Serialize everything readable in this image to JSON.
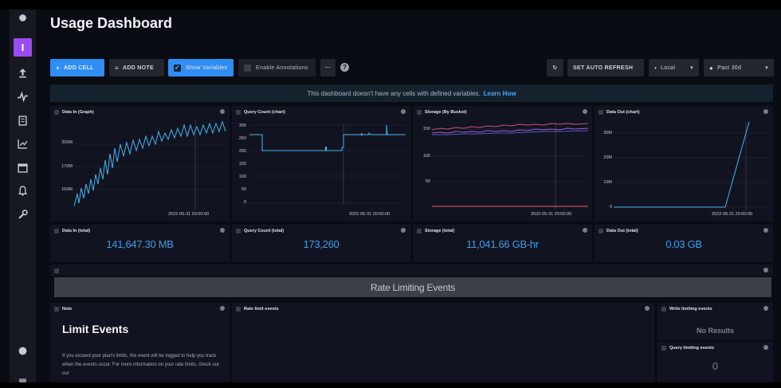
{
  "dashboard": {
    "title": "Usage Dashboard"
  },
  "toolbar": {
    "add_cell": "ADD CELL",
    "add_note": "ADD NOTE",
    "show_variables": "Show Variables",
    "enable_annotations": "Enable Annotations",
    "more": "···",
    "help": "?",
    "auto_refresh": "SET AUTO REFRESH",
    "timezone": "Local",
    "time_range": "Past 30d"
  },
  "banner": {
    "text": "This dashboard doesn't have any cells with defined variables.",
    "link": "Learn How"
  },
  "cells": {
    "data_in_graph": {
      "title": "Data In (Graph)",
      "timestamp": "2022-05-31 20:00:00",
      "y_ticks": [
        "200M",
        "170M",
        "150M"
      ]
    },
    "query_count_chart": {
      "title": "Query Count (chart)",
      "timestamp": "2022-05-31 20:00:00",
      "y_ticks": [
        "300",
        "250",
        "200",
        "150",
        "100",
        "50",
        "0"
      ]
    },
    "storage_by_bucket": {
      "title": "Storage (By Bucket)",
      "timestamp": "2022-05-31 20:00:00",
      "y_ticks": [
        "150",
        "100",
        "50"
      ]
    },
    "data_out_chart": {
      "title": "Data Out (chart)",
      "timestamp": "2022-05-31 20:00:00",
      "y_ticks": [
        "30M",
        "20M",
        "10M",
        "0"
      ]
    },
    "data_in_total": {
      "title": "Data In (total)",
      "value": "141,647.30 MB"
    },
    "query_count_total": {
      "title": "Query Count (total)",
      "value": "173,260"
    },
    "storage_total": {
      "title": "Storage (total)",
      "value": "11,041.66 GB-hr"
    },
    "data_out_total": {
      "title": "Data Out (total)",
      "value": "0.03 GB"
    },
    "section": {
      "title": "Rate Limiting Events"
    },
    "note": {
      "title": "Note",
      "heading": "Limit Events",
      "body": "If you exceed your plan's limits, the event will be logged to help you track when the events occur. For more information on your rate limits, check out our"
    },
    "rate_limit_events": {
      "title": "Rate limit events"
    },
    "write_limiting_events": {
      "title": "Write limiting events",
      "value": "No Results"
    },
    "query_limiting_events": {
      "title": "Query limiting events",
      "value": "0"
    }
  },
  "colors": {
    "accent": "#2f8ef4",
    "series": "#3d9ce8",
    "sidebar_active": "#9b4cf0"
  }
}
